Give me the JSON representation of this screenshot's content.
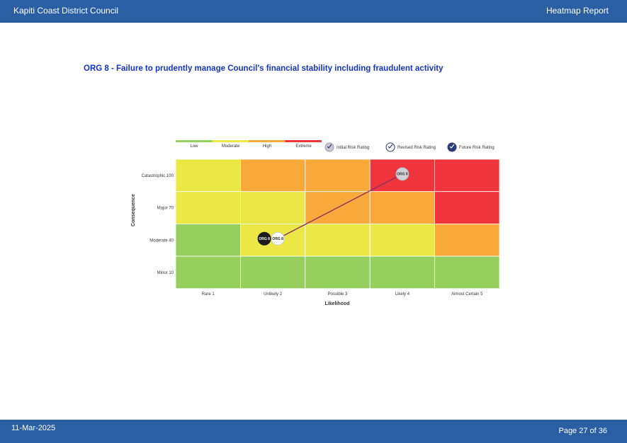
{
  "header": {
    "org_name": "Kapiti Coast District Council",
    "report_name": "Heatmap Report"
  },
  "title": "ORG 8 - Failure to prudently manage Council's financial stability including fraudulent activity",
  "footer": {
    "date": "11-Mar-2025",
    "page": "Page 27 of 36"
  },
  "colors": {
    "low": "#96cf5e",
    "moderate": "#ebe845",
    "high": "#f9a83a",
    "extreme": "#ef353b",
    "header": "#2a5fa3"
  },
  "chart_data": {
    "type": "heatmap",
    "xlabel": "Likelihood",
    "ylabel": "Consequence",
    "x_categories": [
      "Rare 1",
      "Unlikely 2",
      "Possible 3",
      "Likely 4",
      "Almost Certain 5"
    ],
    "y_categories": [
      "Catastrophic 100",
      "Major 70",
      "Moderate 40",
      "Minor 10"
    ],
    "grid": [
      [
        "moderate",
        "high",
        "high",
        "extreme",
        "extreme"
      ],
      [
        "moderate",
        "moderate",
        "high",
        "high",
        "extreme"
      ],
      [
        "low",
        "moderate",
        "moderate",
        "moderate",
        "high"
      ],
      [
        "low",
        "low",
        "low",
        "low",
        "low"
      ]
    ],
    "scale_legend": [
      "Low",
      "Moderate",
      "High",
      "Extreme"
    ],
    "rating_legend": [
      "Initial Risk Rating",
      "Revised Risk Rating",
      "Future Risk Rating"
    ],
    "points": [
      {
        "label": "ORG 8",
        "type": "Initial Risk Rating",
        "likelihood": 4,
        "consequence": "Catastrophic 100"
      },
      {
        "label": "ORG 8",
        "type": "Revised Risk Rating",
        "likelihood": 2,
        "consequence": "Moderate 40"
      },
      {
        "label": "ORG 8",
        "type": "Future Risk Rating",
        "likelihood": 2,
        "consequence": "Moderate 40"
      }
    ]
  }
}
